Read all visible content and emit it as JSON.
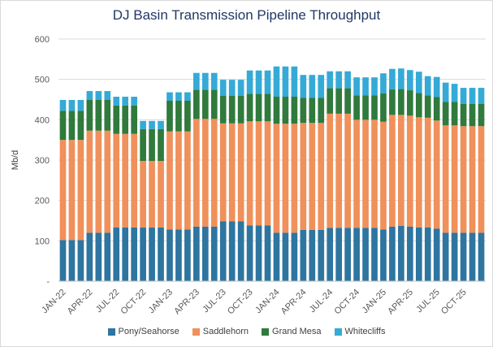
{
  "chart_data": {
    "type": "bar",
    "stacked": true,
    "title": "DJ Basin Transmission Pipeline Throughput",
    "ylabel": "Mb/d",
    "xlabel": "",
    "ylim": [
      0,
      600
    ],
    "yticks": [
      0,
      100,
      200,
      300,
      400,
      500,
      600
    ],
    "ytick_labels": [
      "-",
      "100",
      "200",
      "300",
      "400",
      "500",
      "600"
    ],
    "grid": true,
    "legend_position": "bottom",
    "categories": [
      "JAN-22",
      "FEB-22",
      "MAR-22",
      "APR-22",
      "MAY-22",
      "JUN-22",
      "JUL-22",
      "AUG-22",
      "SEP-22",
      "OCT-22",
      "NOV-22",
      "DEC-22",
      "JAN-23",
      "FEB-23",
      "MAR-23",
      "APR-23",
      "MAY-23",
      "JUN-23",
      "JUL-23",
      "AUG-23",
      "SEP-23",
      "OCT-23",
      "NOV-23",
      "DEC-23",
      "JAN-24",
      "FEB-24",
      "MAR-24",
      "APR-24",
      "MAY-24",
      "JUN-24",
      "JUL-24",
      "AUG-24",
      "SEP-24",
      "OCT-24",
      "NOV-24",
      "DEC-24",
      "JAN-25",
      "FEB-25",
      "MAR-25",
      "APR-25",
      "MAY-25",
      "JUN-25",
      "JUL-25",
      "AUG-25",
      "SEP-25",
      "OCT-25",
      "NOV-25",
      "DEC-25"
    ],
    "tick_labels": [
      "JAN-22",
      "APR-22",
      "JUL-22",
      "OCT-22",
      "JAN-23",
      "APR-23",
      "JUL-23",
      "OCT-23",
      "JAN-24",
      "APR-24",
      "JUL-24",
      "OCT-24",
      "JAN-25",
      "APR-25",
      "JUL-25",
      "OCT-25"
    ],
    "series": [
      {
        "name": "Pony/Seahorse",
        "color": "#2e75a0",
        "values": [
          102,
          102,
          102,
          120,
          120,
          120,
          133,
          133,
          133,
          133,
          133,
          133,
          128,
          128,
          128,
          135,
          135,
          135,
          148,
          148,
          148,
          138,
          138,
          138,
          120,
          120,
          120,
          127,
          127,
          127,
          132,
          132,
          132,
          132,
          132,
          132,
          128,
          135,
          137,
          135,
          133,
          133,
          130,
          120,
          120,
          120,
          120,
          120
        ]
      },
      {
        "name": "Saddlehorn",
        "color": "#f0905a",
        "values": [
          248,
          248,
          248,
          253,
          253,
          253,
          232,
          232,
          232,
          165,
          165,
          165,
          243,
          243,
          243,
          267,
          267,
          267,
          243,
          243,
          243,
          258,
          258,
          258,
          270,
          270,
          270,
          265,
          265,
          265,
          283,
          283,
          283,
          268,
          268,
          268,
          267,
          277,
          275,
          275,
          273,
          272,
          268,
          266,
          266,
          264,
          264,
          264
        ]
      },
      {
        "name": "Grand Mesa",
        "color": "#2f7a3c",
        "values": [
          72,
          72,
          72,
          76,
          76,
          76,
          70,
          70,
          70,
          79,
          79,
          79,
          76,
          76,
          76,
          72,
          72,
          72,
          68,
          68,
          68,
          68,
          68,
          68,
          67,
          67,
          67,
          62,
          62,
          62,
          63,
          63,
          63,
          60,
          60,
          60,
          70,
          63,
          64,
          63,
          60,
          55,
          58,
          58,
          58,
          55,
          55,
          55
        ]
      },
      {
        "name": "Whitecliffs",
        "color": "#35aad6",
        "values": [
          27,
          27,
          27,
          22,
          22,
          22,
          22,
          22,
          22,
          20,
          20,
          20,
          21,
          21,
          21,
          42,
          42,
          42,
          40,
          40,
          40,
          58,
          58,
          58,
          75,
          75,
          75,
          57,
          57,
          57,
          42,
          42,
          42,
          45,
          45,
          45,
          50,
          51,
          51,
          50,
          53,
          48,
          50,
          48,
          45,
          40,
          40,
          40
        ]
      }
    ]
  }
}
